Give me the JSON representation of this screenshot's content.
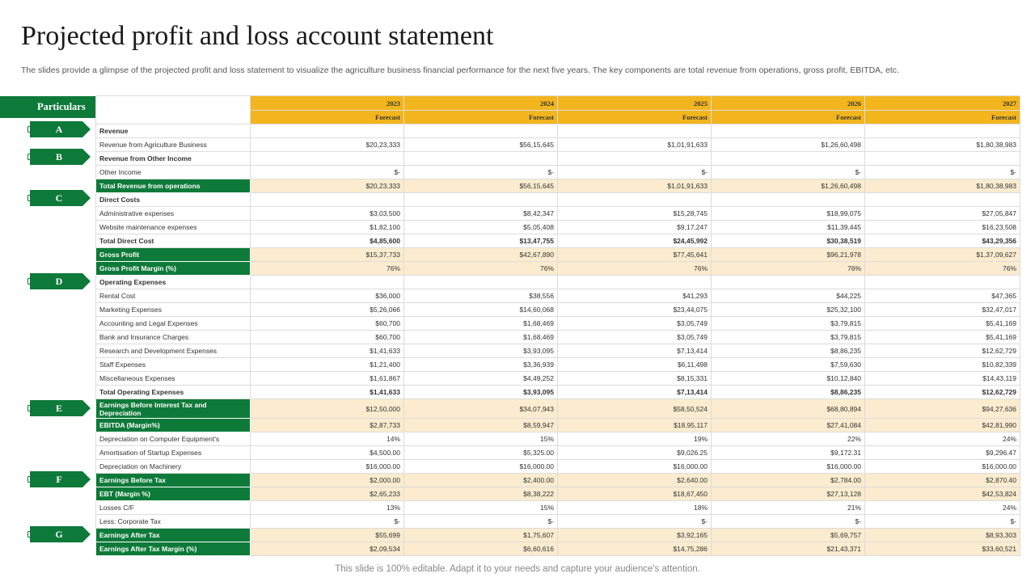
{
  "header": {
    "title": "Projected profit and loss account statement",
    "subtitle": "The slides provide a glimpse of the projected profit and loss statement to visualize the agriculture business financial performance for the next five years. The key components are total revenue from operations, gross profit, EBITDA, etc."
  },
  "particulars_label": "Particulars",
  "sections": [
    "A",
    "B",
    "C",
    "D",
    "E",
    "F",
    "G"
  ],
  "years": [
    {
      "year": "2023",
      "label": "Forecast"
    },
    {
      "year": "2024",
      "label": "Forecast"
    },
    {
      "year": "2025",
      "label": "Forecast"
    },
    {
      "year": "2026",
      "label": "Forecast"
    },
    {
      "year": "2027",
      "label": "Forecast"
    }
  ],
  "rows": [
    {
      "label": "Revenue",
      "values": [
        "",
        "",
        "",
        "",
        ""
      ],
      "style": "bold"
    },
    {
      "label": "Revenue from Agriculture Business",
      "values": [
        "$20,23,333",
        "$56,15,645",
        "$1,01,91,633",
        "$1,26,60,498",
        "$1,80,38,983"
      ],
      "style": ""
    },
    {
      "label": "Revenue from Other Income",
      "values": [
        "",
        "",
        "",
        "",
        ""
      ],
      "style": "bold"
    },
    {
      "label": "Other Income",
      "values": [
        "$-",
        "$-",
        "$-",
        "$-",
        "$-"
      ],
      "style": ""
    },
    {
      "label": "Total Revenue from operations",
      "values": [
        "$20,23,333",
        "$56,15,645",
        "$1,01,91,633",
        "$1,26,60,498",
        "$1,80,38,983"
      ],
      "style": "hl"
    },
    {
      "label": "Direct Costs",
      "values": [
        "",
        "",
        "",
        "",
        ""
      ],
      "style": "bold"
    },
    {
      "label": "Administrative expenses",
      "values": [
        "$3,03,500",
        "$8,42,347",
        "$15,28,745",
        "$18,99,075",
        "$27,05,847"
      ],
      "style": ""
    },
    {
      "label": "Website maintenance expenses",
      "values": [
        "$1,82,100",
        "$5,05,408",
        "$9,17,247",
        "$11,39,445",
        "$16,23,508"
      ],
      "style": ""
    },
    {
      "label": " Total Direct Cost",
      "values": [
        "$4,85,600",
        "$13,47,755",
        "$24,45,992",
        "$30,38,519",
        "$43,29,356"
      ],
      "style": "bold"
    },
    {
      "label": "Gross Profit",
      "values": [
        "$15,37,733",
        "$42,67,890",
        "$77,45,641",
        "$96,21,978",
        "$1,37,09,627"
      ],
      "style": "hl"
    },
    {
      "label": "Gross Profit Margin (%)",
      "values": [
        "76%",
        "76%",
        "76%",
        "76%",
        "76%"
      ],
      "style": "hl"
    },
    {
      "label": "Operating Expenses",
      "values": [
        "",
        "",
        "",
        "",
        ""
      ],
      "style": "bold"
    },
    {
      "label": "Rental Cost",
      "values": [
        "$36,000",
        "$38,556",
        "$41,293",
        "$44,225",
        "$47,365"
      ],
      "style": ""
    },
    {
      "label": "Marketing Expenses",
      "values": [
        "$5,26,066",
        "$14,60,068",
        "$23,44,075",
        "$25,32,100",
        "$32,47,017"
      ],
      "style": ""
    },
    {
      "label": "Accounting and Legal Expenses",
      "values": [
        "$60,700",
        "$1,68,469",
        "$3,05,749",
        "$3,79,815",
        "$5,41,169"
      ],
      "style": ""
    },
    {
      "label": "Bank and Insurance Charges",
      "values": [
        "$60,700",
        "$1,68,469",
        "$3,05,749",
        "$3,79,815",
        "$5,41,169"
      ],
      "style": ""
    },
    {
      "label": "Research and Development Expenses",
      "values": [
        "$1,41,633",
        "$3,93,095",
        "$7,13,414",
        "$8,86,235",
        "$12,62,729"
      ],
      "style": ""
    },
    {
      "label": "Staff Expenses",
      "values": [
        "$1,21,400",
        "$3,36,939",
        "$6,11,498",
        "$7,59,630",
        "$10,82,339"
      ],
      "style": ""
    },
    {
      "label": "Miscellaneous Expenses",
      "values": [
        "$1,61,867",
        "$4,49,252",
        "$8,15,331",
        "$10,12,840",
        "$14,43,119"
      ],
      "style": ""
    },
    {
      "label": "Total Operating Expenses",
      "values": [
        "$1,41,633",
        "$3,93,095",
        "$7,13,414",
        "$8,86,235",
        "$12,62,729"
      ],
      "style": "bold"
    },
    {
      "label": "Earnings Before Interest Tax and Depreciation",
      "values": [
        "$12,50,000",
        "$34,07,943",
        "$58,50,524",
        "$68,80,894",
        "$94,27,636"
      ],
      "style": "hl tall"
    },
    {
      "label": "EBITDA (Margin%)",
      "values": [
        "$2,87,733",
        "$8,59,947",
        "$18,95,117",
        "$27,41,084",
        "$42,81,990"
      ],
      "style": "hl"
    },
    {
      "label": "Depreciation on Computer Equipment's",
      "values": [
        "14%",
        "15%",
        "19%",
        "22%",
        "24%"
      ],
      "style": ""
    },
    {
      "label": "Amortisation of Startup Expenses",
      "values": [
        "$4,500.00",
        "$5,325.00",
        "$9,026.25",
        "$9,172.31",
        "$9,296.47"
      ],
      "style": ""
    },
    {
      "label": "Depreciation on Machinery",
      "values": [
        "$16,000.00",
        "$16,000.00",
        "$16,000.00",
        "$16,000.00",
        "$16,000.00"
      ],
      "style": ""
    },
    {
      "label": "Earnings Before Tax",
      "values": [
        "$2,000.00",
        "$2,400.00",
        "$2,640.00",
        "$2,784.00",
        "$2,870.40"
      ],
      "style": "hl"
    },
    {
      "label": "EBT (Margin %)",
      "values": [
        "$2,65,233",
        "$8,38,222",
        "$18,67,450",
        "$27,13,128",
        "$42,53,824"
      ],
      "style": "hl"
    },
    {
      "label": "Losses C/F",
      "values": [
        "13%",
        "15%",
        "18%",
        "21%",
        "24%"
      ],
      "style": ""
    },
    {
      "label": "Less: Corporate Tax",
      "values": [
        "$-",
        "$-",
        "$-",
        "$-",
        "$-"
      ],
      "style": ""
    },
    {
      "label": "Earnings After Tax",
      "values": [
        "$55,699",
        "$1,75,607",
        "$3,92,165",
        "$5,69,757",
        "$8,93,303"
      ],
      "style": "hl"
    },
    {
      "label": "Earnings After Tax Margin (%)",
      "values": [
        "$2,09,534",
        "$6,60,616",
        "$14,75,286",
        "$21,43,371",
        "$33,60,521"
      ],
      "style": "hl"
    }
  ],
  "footer": "This slide is 100% editable. Adapt it to your needs and capture your audience's attention."
}
